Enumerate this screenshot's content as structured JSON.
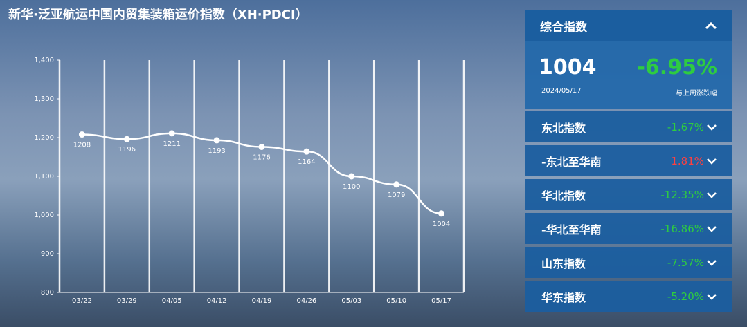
{
  "chart_data": {
    "type": "line",
    "title": "新华·泛亚航运中国内贸集装箱运价指数（XH·PDCI）",
    "categories": [
      "03/22",
      "03/29",
      "04/05",
      "04/12",
      "04/19",
      "04/26",
      "05/03",
      "05/10",
      "05/17"
    ],
    "values": [
      1208,
      1196,
      1211,
      1193,
      1176,
      1164,
      1100,
      1079,
      1004
    ],
    "color": "#ffffff",
    "ylim": [
      800,
      1400
    ],
    "yticks": [
      800,
      900,
      {
        "value": 1000,
        "label": "1,000"
      },
      {
        "value": 1100,
        "label": "1,100"
      },
      {
        "value": 1200,
        "label": "1,200"
      },
      {
        "value": 1300,
        "label": "1,300"
      },
      {
        "value": 1400,
        "label": "1,400"
      }
    ],
    "grid": true
  },
  "panel": {
    "header": "综合指数",
    "value": "1004",
    "change": "-6.95%",
    "date": "2024/05/17",
    "change_note": "与上周涨跌幅",
    "rows": [
      {
        "name": "东北指数",
        "change": "-1.67%",
        "color": "#2ecc40"
      },
      {
        "name": "-东北至华南",
        "change": "1.81%",
        "color": "#ff4040"
      },
      {
        "name": "华北指数",
        "change": "-12.35%",
        "color": "#2ecc40"
      },
      {
        "name": "-华北至华南",
        "change": "-16.86%",
        "color": "#2ecc40"
      },
      {
        "name": "山东指数",
        "change": "-7.57%",
        "color": "#2ecc40"
      },
      {
        "name": "华东指数",
        "change": "-5.20%",
        "color": "#2ecc40"
      }
    ]
  }
}
